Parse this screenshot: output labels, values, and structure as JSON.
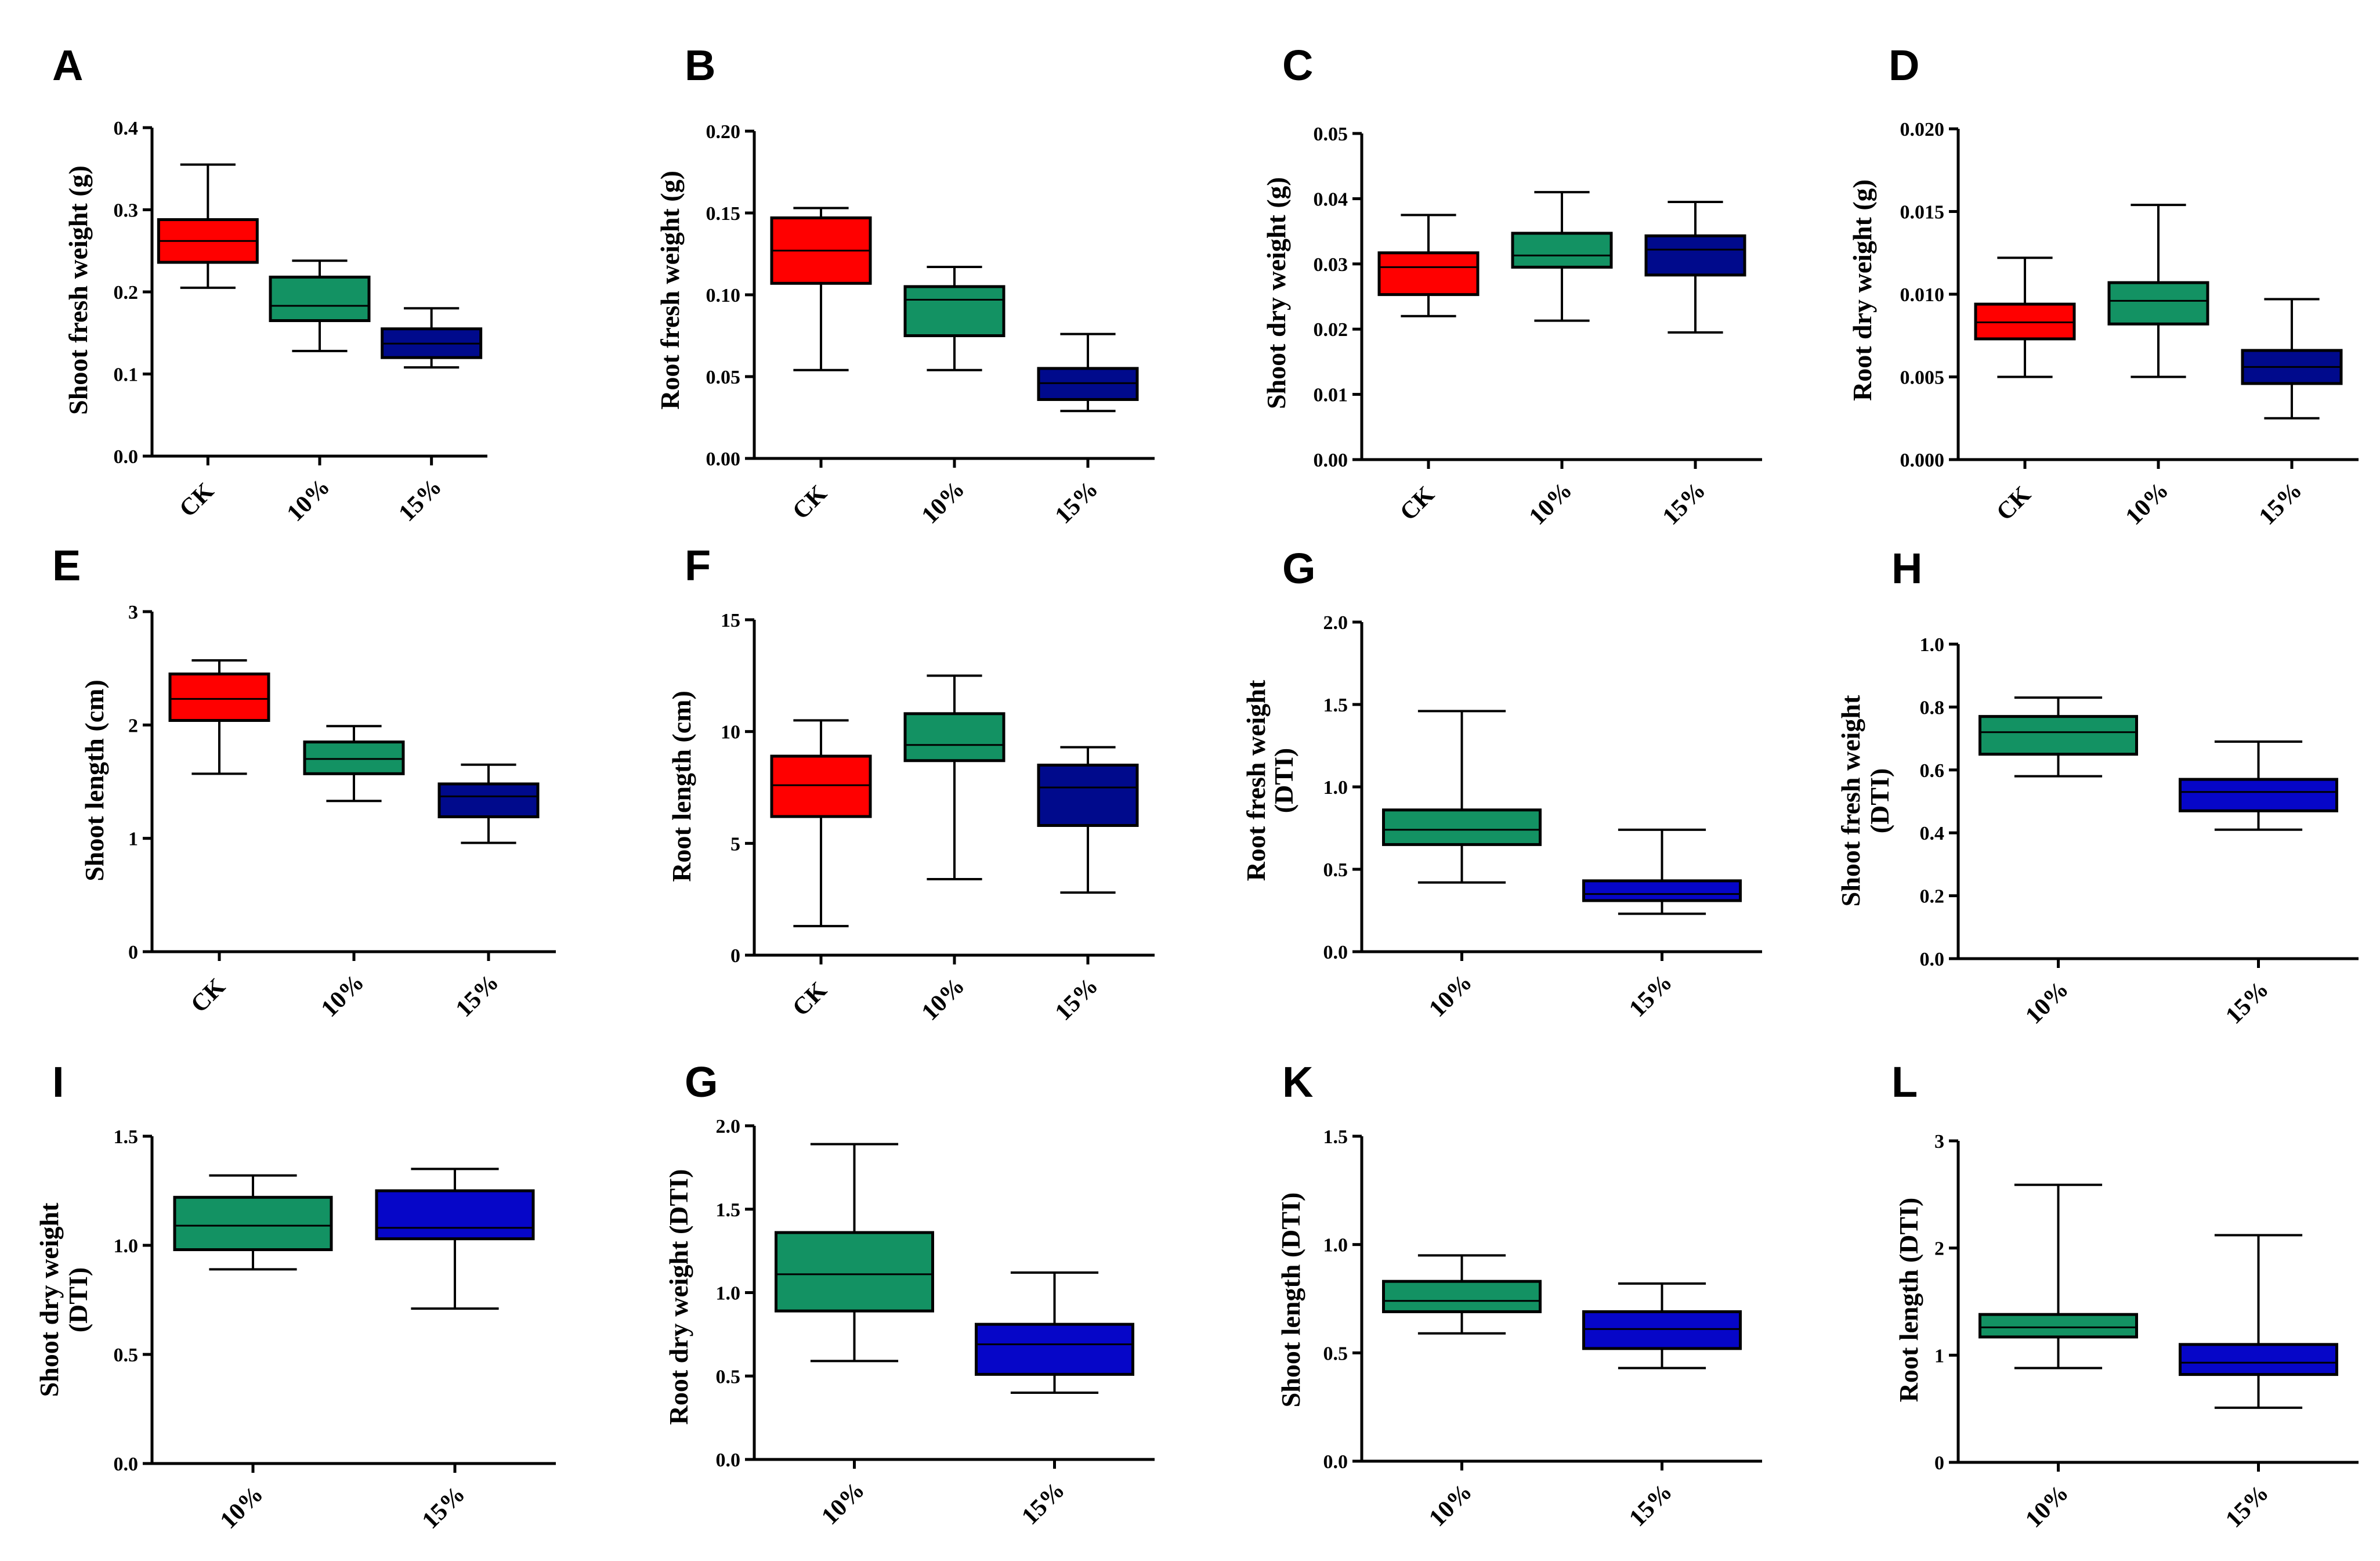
{
  "colors": {
    "CK": "#ff0000",
    "10%": "#139263",
    "15%": "#000a8c",
    "15%_light": "#0606c8",
    "line": "#000000"
  },
  "chart_data": [
    {
      "panel": "A",
      "type": "box",
      "ylabel": "Shoot fresh weight (g)",
      "ylim": [
        0,
        0.4
      ],
      "yticks": [
        "0.0",
        "0.1",
        "0.2",
        "0.3",
        "0.4"
      ],
      "categories": [
        "CK",
        "10%",
        "15%"
      ],
      "boxes": [
        {
          "category": "CK",
          "min": 0.205,
          "q1": 0.236,
          "median": 0.262,
          "q3": 0.288,
          "max": 0.355
        },
        {
          "category": "10%",
          "min": 0.128,
          "q1": 0.165,
          "median": 0.183,
          "q3": 0.218,
          "max": 0.238
        },
        {
          "category": "15%",
          "min": 0.108,
          "q1": 0.12,
          "median": 0.137,
          "q3": 0.155,
          "max": 0.18
        }
      ]
    },
    {
      "panel": "B",
      "type": "box",
      "ylabel": "Root fresh weight (g)",
      "ylim": [
        0,
        0.2
      ],
      "yticks": [
        "0.00",
        "0.05",
        "0.10",
        "0.15",
        "0.20"
      ],
      "categories": [
        "CK",
        "10%",
        "15%"
      ],
      "boxes": [
        {
          "category": "CK",
          "min": 0.054,
          "q1": 0.107,
          "median": 0.127,
          "q3": 0.147,
          "max": 0.153
        },
        {
          "category": "10%",
          "min": 0.054,
          "q1": 0.075,
          "median": 0.097,
          "q3": 0.105,
          "max": 0.117
        },
        {
          "category": "15%",
          "min": 0.029,
          "q1": 0.036,
          "median": 0.046,
          "q3": 0.055,
          "max": 0.076
        }
      ]
    },
    {
      "panel": "C",
      "type": "box",
      "ylabel": "Shoot dry weight (g)",
      "ylim": [
        0,
        0.05
      ],
      "yticks": [
        "0.00",
        "0.01",
        "0.02",
        "0.03",
        "0.04",
        "0.05"
      ],
      "categories": [
        "CK",
        "10%",
        "15%"
      ],
      "boxes": [
        {
          "category": "CK",
          "min": 0.022,
          "q1": 0.0253,
          "median": 0.0295,
          "q3": 0.0317,
          "max": 0.0375
        },
        {
          "category": "10%",
          "min": 0.0213,
          "q1": 0.0295,
          "median": 0.0313,
          "q3": 0.0347,
          "max": 0.041
        },
        {
          "category": "15%",
          "min": 0.0195,
          "q1": 0.0283,
          "median": 0.0322,
          "q3": 0.0343,
          "max": 0.0395
        }
      ]
    },
    {
      "panel": "D",
      "type": "box",
      "ylabel": "Root dry weight (g)",
      "ylim": [
        0,
        0.02
      ],
      "yticks": [
        "0.000",
        "0.005",
        "0.010",
        "0.015",
        "0.020"
      ],
      "categories": [
        "CK",
        "10%",
        "15%"
      ],
      "boxes": [
        {
          "category": "CK",
          "min": 0.005,
          "q1": 0.0073,
          "median": 0.0083,
          "q3": 0.0094,
          "max": 0.0122
        },
        {
          "category": "10%",
          "min": 0.005,
          "q1": 0.0082,
          "median": 0.0096,
          "q3": 0.0107,
          "max": 0.0154
        },
        {
          "category": "15%",
          "min": 0.0025,
          "q1": 0.0046,
          "median": 0.0056,
          "q3": 0.0066,
          "max": 0.0097
        }
      ]
    },
    {
      "panel": "E",
      "type": "box",
      "ylabel": "Shoot length (cm)",
      "ylim": [
        0,
        3
      ],
      "yticks": [
        "0",
        "1",
        "2",
        "3"
      ],
      "categories": [
        "CK",
        "10%",
        "15%"
      ],
      "boxes": [
        {
          "category": "CK",
          "min": 1.57,
          "q1": 2.04,
          "median": 2.23,
          "q3": 2.45,
          "max": 2.57
        },
        {
          "category": "10%",
          "min": 1.33,
          "q1": 1.57,
          "median": 1.7,
          "q3": 1.85,
          "max": 1.99
        },
        {
          "category": "15%",
          "min": 0.96,
          "q1": 1.19,
          "median": 1.37,
          "q3": 1.48,
          "max": 1.65
        }
      ]
    },
    {
      "panel": "F",
      "type": "box",
      "ylabel": "Root length (cm)",
      "ylim": [
        0,
        15
      ],
      "yticks": [
        "0",
        "5",
        "10",
        "15"
      ],
      "categories": [
        "CK",
        "10%",
        "15%"
      ],
      "boxes": [
        {
          "category": "CK",
          "min": 1.3,
          "q1": 6.2,
          "median": 7.6,
          "q3": 8.9,
          "max": 10.5
        },
        {
          "category": "10%",
          "min": 3.4,
          "q1": 8.7,
          "median": 9.4,
          "q3": 10.8,
          "max": 12.5
        },
        {
          "category": "15%",
          "min": 2.8,
          "q1": 5.8,
          "median": 7.5,
          "q3": 8.5,
          "max": 9.3
        }
      ]
    },
    {
      "panel": "G",
      "type": "box",
      "ylabel": "Root fresh weight (DTI)",
      "ylim": [
        0,
        2.0
      ],
      "yticks": [
        "0.0",
        "0.5",
        "1.0",
        "1.5",
        "2.0"
      ],
      "categories": [
        "10%",
        "15%"
      ],
      "boxes": [
        {
          "category": "10%",
          "min": 0.42,
          "q1": 0.65,
          "median": 0.74,
          "q3": 0.86,
          "max": 1.46
        },
        {
          "category": "15%",
          "min": 0.23,
          "q1": 0.31,
          "median": 0.35,
          "q3": 0.43,
          "max": 0.74
        }
      ]
    },
    {
      "panel": "H",
      "type": "box",
      "ylabel": "Shoot fresh weight (DTI)",
      "ylim": [
        0,
        1.0
      ],
      "yticks": [
        "0.0",
        "0.2",
        "0.4",
        "0.6",
        "0.8",
        "1.0"
      ],
      "categories": [
        "10%",
        "15%"
      ],
      "boxes": [
        {
          "category": "10%",
          "min": 0.58,
          "q1": 0.65,
          "median": 0.72,
          "q3": 0.77,
          "max": 0.83
        },
        {
          "category": "15%",
          "min": 0.41,
          "q1": 0.47,
          "median": 0.53,
          "q3": 0.57,
          "max": 0.69
        }
      ]
    },
    {
      "panel": "I",
      "type": "box",
      "ylabel": "Shoot dry weight (DTI)",
      "ylim": [
        0,
        1.5
      ],
      "yticks": [
        "0.0",
        "0.5",
        "1.0",
        "1.5"
      ],
      "categories": [
        "10%",
        "15%"
      ],
      "boxes": [
        {
          "category": "10%",
          "min": 0.89,
          "q1": 0.98,
          "median": 1.09,
          "q3": 1.22,
          "max": 1.32
        },
        {
          "category": "15%",
          "min": 0.71,
          "q1": 1.03,
          "median": 1.08,
          "q3": 1.25,
          "max": 1.35
        }
      ]
    },
    {
      "panel": "G",
      "type": "box",
      "ylabel": "Root dry weight (DTI)",
      "ylim": [
        0,
        2.0
      ],
      "yticks": [
        "0.0",
        "0.5",
        "1.0",
        "1.5",
        "2.0"
      ],
      "categories": [
        "10%",
        "15%"
      ],
      "boxes": [
        {
          "category": "10%",
          "min": 0.59,
          "q1": 0.89,
          "median": 1.11,
          "q3": 1.36,
          "max": 1.89
        },
        {
          "category": "15%",
          "min": 0.4,
          "q1": 0.51,
          "median": 0.69,
          "q3": 0.81,
          "max": 1.12
        }
      ]
    },
    {
      "panel": "K",
      "type": "box",
      "ylabel": "Shoot length (DTI)",
      "ylim": [
        0,
        1.5
      ],
      "yticks": [
        "0.0",
        "0.5",
        "1.0",
        "1.5"
      ],
      "categories": [
        "10%",
        "15%"
      ],
      "boxes": [
        {
          "category": "10%",
          "min": 0.59,
          "q1": 0.69,
          "median": 0.74,
          "q3": 0.83,
          "max": 0.95
        },
        {
          "category": "15%",
          "min": 0.43,
          "q1": 0.52,
          "median": 0.61,
          "q3": 0.69,
          "max": 0.82
        }
      ]
    },
    {
      "panel": "L",
      "type": "box",
      "ylabel": "Root length (DTI)",
      "ylim": [
        0,
        3
      ],
      "yticks": [
        "0",
        "1",
        "2",
        "3"
      ],
      "categories": [
        "10%",
        "15%"
      ],
      "boxes": [
        {
          "category": "10%",
          "min": 0.88,
          "q1": 1.17,
          "median": 1.26,
          "q3": 1.38,
          "max": 2.59
        },
        {
          "category": "15%",
          "min": 0.51,
          "q1": 0.82,
          "median": 0.93,
          "q3": 1.1,
          "max": 2.12
        }
      ]
    }
  ]
}
